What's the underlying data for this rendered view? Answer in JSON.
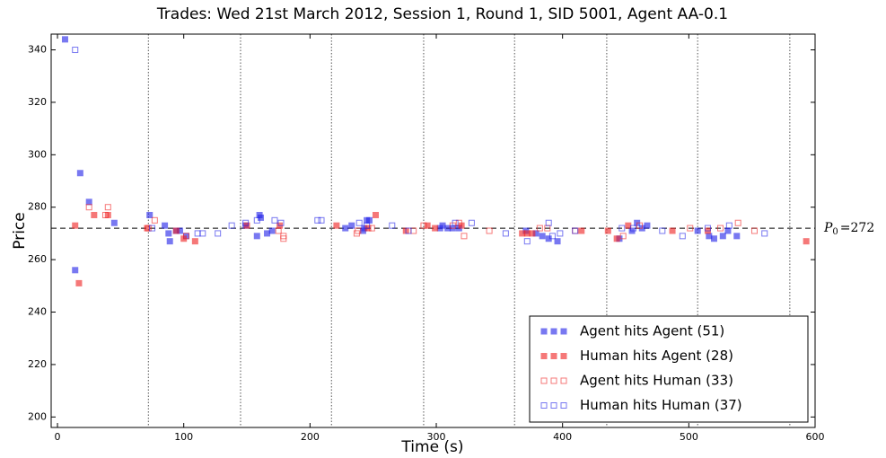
{
  "chart_data": {
    "type": "scatter",
    "title": "Trades: Wed 21st March 2012, Session 1, Round 1, SID 5001, Agent AA-0.1",
    "xlabel": "Time (s)",
    "ylabel": "Price",
    "xlim": [
      -5,
      600
    ],
    "ylim": [
      196,
      346
    ],
    "xticks": [
      0,
      100,
      200,
      300,
      400,
      500,
      600
    ],
    "yticks": [
      200,
      220,
      240,
      260,
      280,
      300,
      320,
      340
    ],
    "vlines": [
      72,
      145,
      217,
      290,
      362,
      435,
      507,
      580
    ],
    "reference_line": {
      "value": 272,
      "symbol": "P",
      "subscript": "0",
      "label": "=272"
    },
    "legend": "lower right",
    "series": [
      {
        "name": "Agent hits Agent (51)",
        "color": "#2020e8",
        "filled": true,
        "x": [
          6,
          18,
          25,
          14,
          45,
          73,
          85,
          88,
          89,
          94,
          97,
          102,
          149,
          158,
          161,
          160,
          166,
          170,
          228,
          233,
          242,
          245,
          247,
          243,
          303,
          305,
          309,
          313,
          318,
          371,
          379,
          384,
          389,
          396,
          445,
          455,
          459,
          463,
          467,
          507,
          516,
          520,
          527,
          531,
          538
        ],
        "values": [
          344,
          293,
          282,
          256,
          274,
          277,
          273,
          270,
          267,
          271,
          271,
          269,
          273,
          269,
          276,
          277,
          270,
          271,
          272,
          273,
          271,
          275,
          275,
          272,
          272,
          273,
          272,
          272,
          272,
          271,
          270,
          269,
          268,
          267,
          268,
          271,
          274,
          272,
          273,
          271,
          269,
          268,
          269,
          271,
          269
        ]
      },
      {
        "name": "Human hits Agent (28)",
        "color": "#f02020",
        "filled": true,
        "x": [
          14,
          17,
          29,
          40,
          71,
          94,
          100,
          109,
          150,
          176,
          221,
          246,
          252,
          276,
          293,
          299,
          320,
          368,
          372,
          376,
          415,
          436,
          443,
          452,
          487,
          515,
          593
        ],
        "values": [
          273,
          251,
          277,
          277,
          272,
          271,
          268,
          267,
          273,
          273,
          273,
          272,
          277,
          271,
          273,
          272,
          273,
          270,
          270,
          270,
          271,
          271,
          268,
          273,
          271,
          271,
          267
        ]
      },
      {
        "name": "Agent hits Human (33)",
        "color": "#f02020",
        "filled": false,
        "x": [
          25,
          40,
          38,
          72,
          77,
          102,
          175,
          179,
          179,
          238,
          237,
          249,
          282,
          290,
          313,
          318,
          322,
          342,
          382,
          388,
          410,
          448,
          461,
          501,
          525,
          539,
          552
        ],
        "values": [
          280,
          280,
          277,
          272,
          275,
          269,
          271,
          269,
          268,
          271,
          270,
          272,
          271,
          273,
          273,
          274,
          269,
          271,
          272,
          272,
          271,
          269,
          273,
          272,
          272,
          274,
          271
        ]
      },
      {
        "name": "Human hits Human (37)",
        "color": "#2020e8",
        "filled": false,
        "x": [
          14,
          75,
          111,
          115,
          127,
          138,
          149,
          158,
          172,
          177,
          206,
          209,
          239,
          245,
          265,
          278,
          315,
          328,
          355,
          372,
          389,
          392,
          398,
          410,
          447,
          456,
          479,
          495,
          515,
          532,
          560
        ],
        "values": [
          340,
          272,
          270,
          270,
          270,
          273,
          274,
          275,
          275,
          274,
          275,
          275,
          274,
          273,
          273,
          271,
          274,
          274,
          270,
          267,
          274,
          269,
          270,
          271,
          272,
          272,
          271,
          269,
          272,
          273,
          270
        ]
      }
    ]
  }
}
